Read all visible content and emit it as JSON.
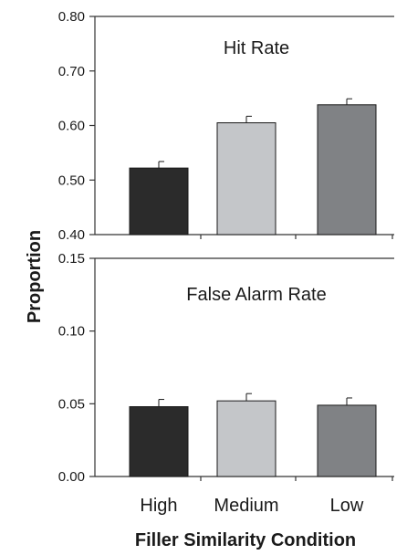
{
  "chart_data": [
    {
      "type": "bar",
      "title": "Hit Rate",
      "categories": [
        "High",
        "Medium",
        "Low"
      ],
      "values": [
        0.522,
        0.605,
        0.638
      ],
      "errors": [
        0.012,
        0.012,
        0.011
      ],
      "ylim": [
        0.4,
        0.8
      ],
      "yticks": [
        "0.40",
        "0.50",
        "0.60",
        "0.70",
        "0.80"
      ],
      "colors": [
        "#2b2b2b",
        "#c4c6c9",
        "#808285"
      ]
    },
    {
      "type": "bar",
      "title": "False Alarm Rate",
      "categories": [
        "High",
        "Medium",
        "Low"
      ],
      "values": [
        0.048,
        0.052,
        0.049
      ],
      "errors": [
        0.005,
        0.005,
        0.005
      ],
      "ylim": [
        0.0,
        0.15
      ],
      "yticks": [
        "0.00",
        "0.05",
        "0.10",
        "0.15"
      ],
      "colors": [
        "#2b2b2b",
        "#c4c6c9",
        "#808285"
      ]
    }
  ],
  "axes": {
    "ylabel": "Proportion",
    "xlabel": "Filler Similarity Condition",
    "x_categories": [
      "High",
      "Medium",
      "Low"
    ]
  }
}
